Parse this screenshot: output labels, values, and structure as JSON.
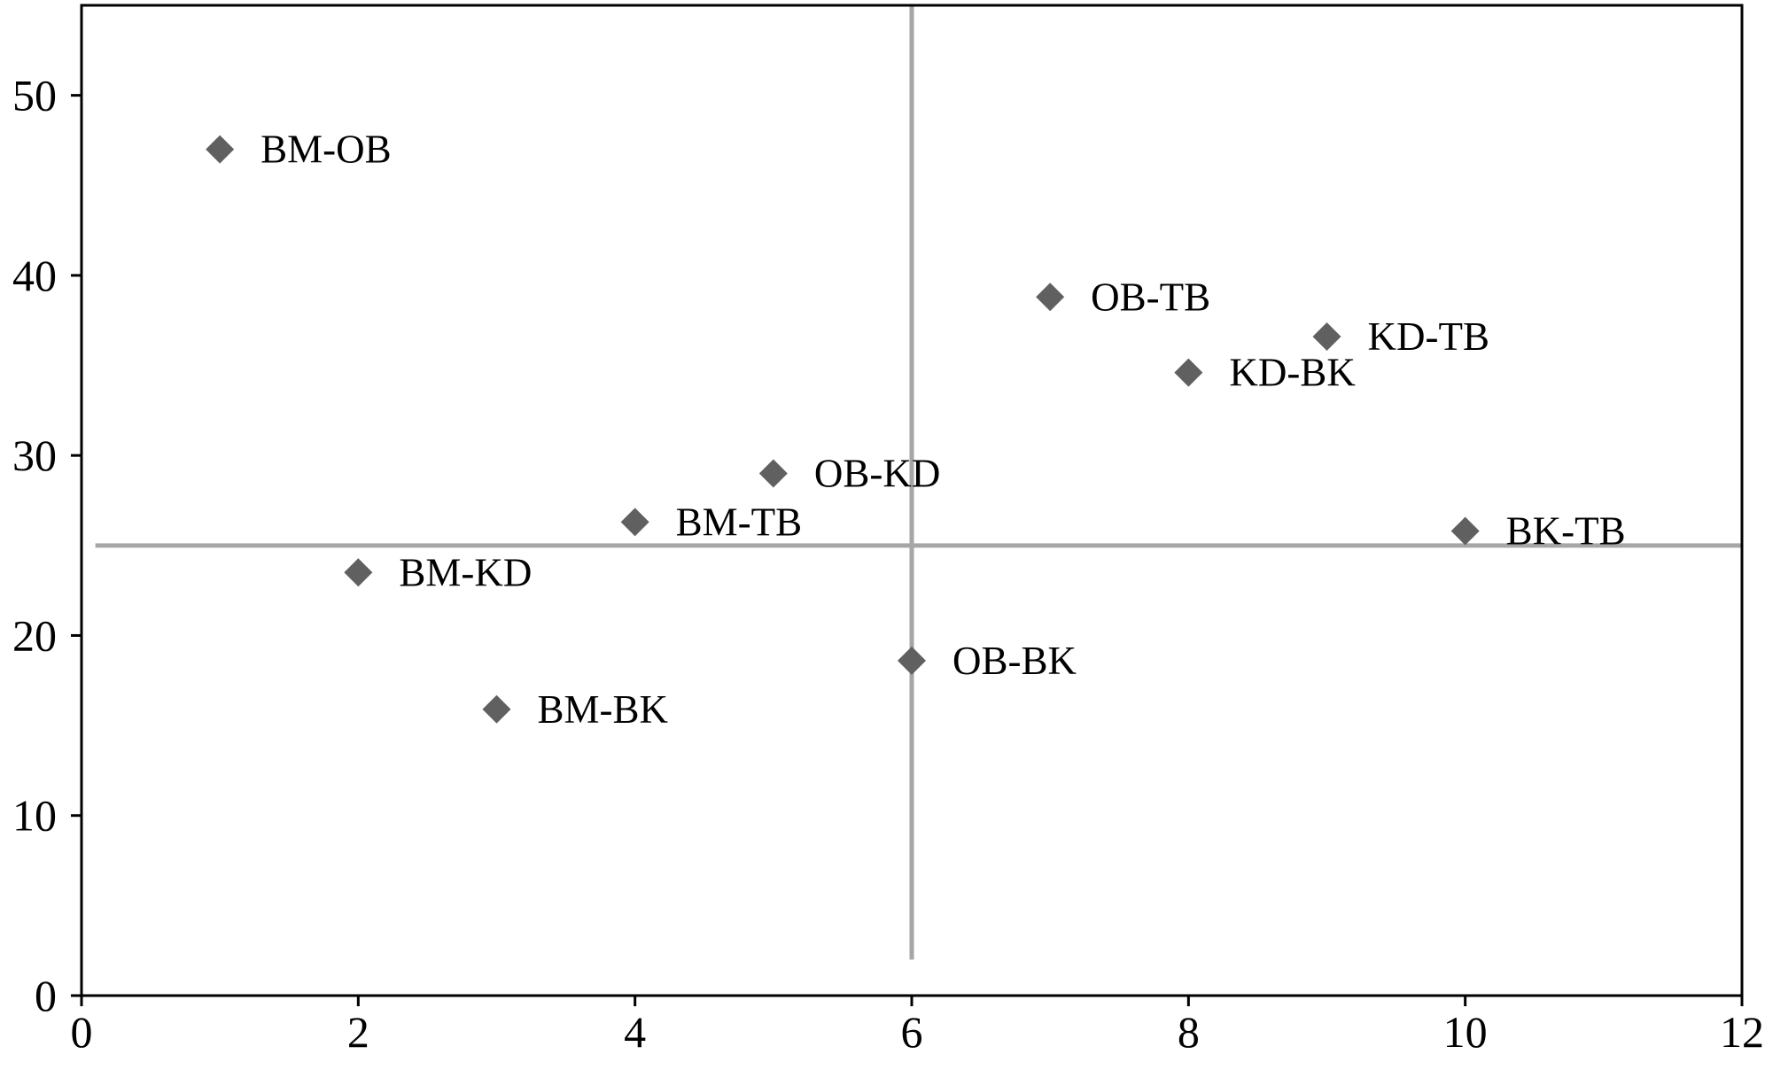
{
  "chart_data": {
    "type": "scatter",
    "title": "",
    "xlabel": "",
    "ylabel": "",
    "xlim": [
      0,
      12
    ],
    "ylim": [
      0,
      55
    ],
    "x_ticks": [
      0,
      2,
      4,
      6,
      8,
      10,
      12
    ],
    "y_ticks": [
      0,
      10,
      20,
      30,
      40,
      50
    ],
    "grid": false,
    "legend": "none",
    "marker": "diamond",
    "marker_color": "#606060",
    "reference_line_color": "#a6a6a6",
    "reference_lines": {
      "vertical": {
        "x": 6,
        "y_from": 2,
        "y_to": 55
      },
      "horizontal": {
        "y": 25,
        "x_from": 0.1,
        "x_to": 12
      }
    },
    "points": [
      {
        "label": "BM-OB",
        "x": 1,
        "y": 47.0
      },
      {
        "label": "BM-KD",
        "x": 2,
        "y": 23.5
      },
      {
        "label": "BM-BK",
        "x": 3,
        "y": 15.9
      },
      {
        "label": "BM-TB",
        "x": 4,
        "y": 26.3
      },
      {
        "label": "OB-KD",
        "x": 5,
        "y": 29.0
      },
      {
        "label": "OB-BK",
        "x": 6,
        "y": 18.6
      },
      {
        "label": "OB-TB",
        "x": 7,
        "y": 38.8
      },
      {
        "label": "KD-BK",
        "x": 8,
        "y": 34.6
      },
      {
        "label": "KD-TB",
        "x": 9,
        "y": 36.6
      },
      {
        "label": "BK-TB",
        "x": 10,
        "y": 25.8
      }
    ]
  }
}
